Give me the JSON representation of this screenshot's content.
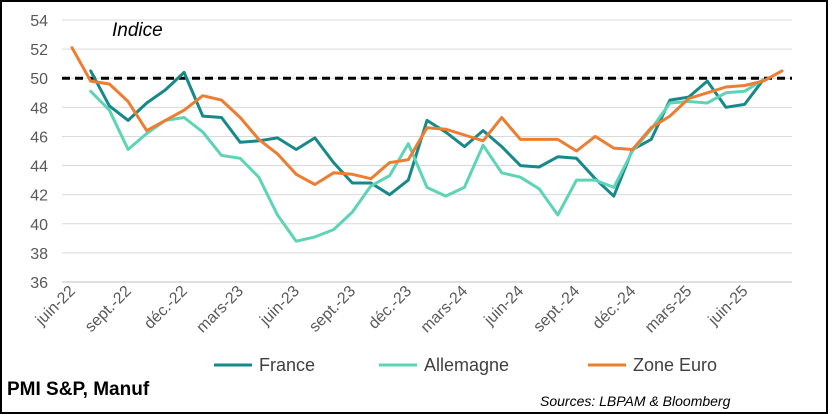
{
  "footer": {
    "title": "PMI S&P, Manuf",
    "source": "Sources: LBPAM & Bloomberg"
  },
  "chart_data": {
    "type": "line",
    "annotation": "Indice",
    "ylim": [
      36,
      54
    ],
    "yticks": [
      36,
      38,
      40,
      42,
      44,
      46,
      48,
      50,
      52,
      54
    ],
    "grid": true,
    "reference_line": {
      "value": 50,
      "style": "dashed",
      "color": "#000000"
    },
    "x": [
      "2022-06",
      "2022-07",
      "2022-08",
      "2022-09",
      "2022-10",
      "2022-11",
      "2022-12",
      "2023-01",
      "2023-02",
      "2023-03",
      "2023-04",
      "2023-05",
      "2023-06",
      "2023-07",
      "2023-08",
      "2023-09",
      "2023-10",
      "2023-11",
      "2023-12",
      "2024-01",
      "2024-02",
      "2024-03",
      "2024-04",
      "2024-05",
      "2024-06",
      "2024-07",
      "2024-08",
      "2024-09",
      "2024-10",
      "2024-11",
      "2024-12",
      "2025-01",
      "2025-02",
      "2025-03",
      "2025-04",
      "2025-05",
      "2025-06",
      "2025-07",
      "2025-08"
    ],
    "xtick_labels": [
      {
        "x": "2022-06",
        "label": "juin-22"
      },
      {
        "x": "2022-09",
        "label": "sept.-22"
      },
      {
        "x": "2022-12",
        "label": "déc.-22"
      },
      {
        "x": "2023-03",
        "label": "mars-23"
      },
      {
        "x": "2023-06",
        "label": "juin-23"
      },
      {
        "x": "2023-09",
        "label": "sept.-23"
      },
      {
        "x": "2023-12",
        "label": "déc.-23"
      },
      {
        "x": "2024-03",
        "label": "mars-24"
      },
      {
        "x": "2024-06",
        "label": "juin-24"
      },
      {
        "x": "2024-09",
        "label": "sept.-24"
      },
      {
        "x": "2024-12",
        "label": "déc.-24"
      },
      {
        "x": "2025-03",
        "label": "mars-25"
      },
      {
        "x": "2025-06",
        "label": "juin-25"
      }
    ],
    "legend_position": "bottom",
    "series": [
      {
        "name": "France",
        "color": "#17898a",
        "values": [
          null,
          50.5,
          48.1,
          47.1,
          48.3,
          49.2,
          50.4,
          47.4,
          47.3,
          45.6,
          45.7,
          45.9,
          45.1,
          45.9,
          44.2,
          42.8,
          42.8,
          42.0,
          43.0,
          47.1,
          46.3,
          45.3,
          46.4,
          45.3,
          44.0,
          43.9,
          44.6,
          44.5,
          43.1,
          41.9,
          45.1,
          45.8,
          48.5,
          48.7,
          49.8,
          48.0,
          48.2,
          49.9,
          null
        ]
      },
      {
        "name": "Allemagne",
        "color": "#5ed4b6",
        "values": [
          null,
          49.1,
          47.8,
          45.1,
          46.2,
          47.1,
          47.3,
          46.3,
          44.7,
          44.5,
          43.2,
          40.6,
          38.8,
          39.1,
          39.6,
          40.8,
          42.6,
          43.3,
          45.5,
          42.5,
          41.9,
          42.5,
          45.4,
          43.5,
          43.2,
          42.4,
          40.6,
          43.0,
          43.0,
          42.5,
          45.0,
          46.5,
          48.3,
          48.4,
          48.3,
          49.0,
          49.1,
          49.9,
          null
        ]
      },
      {
        "name": "Zone Euro",
        "color": "#ed7d31",
        "values": [
          52.1,
          49.8,
          49.6,
          48.4,
          46.4,
          47.1,
          47.8,
          48.8,
          48.5,
          47.3,
          45.8,
          44.8,
          43.4,
          42.7,
          43.5,
          43.4,
          43.1,
          44.2,
          44.4,
          46.6,
          46.5,
          46.1,
          45.7,
          47.3,
          45.8,
          45.8,
          45.8,
          45.0,
          46.0,
          45.2,
          45.1,
          46.6,
          47.4,
          48.6,
          49.0,
          49.4,
          49.5,
          49.8,
          50.5
        ]
      }
    ]
  }
}
